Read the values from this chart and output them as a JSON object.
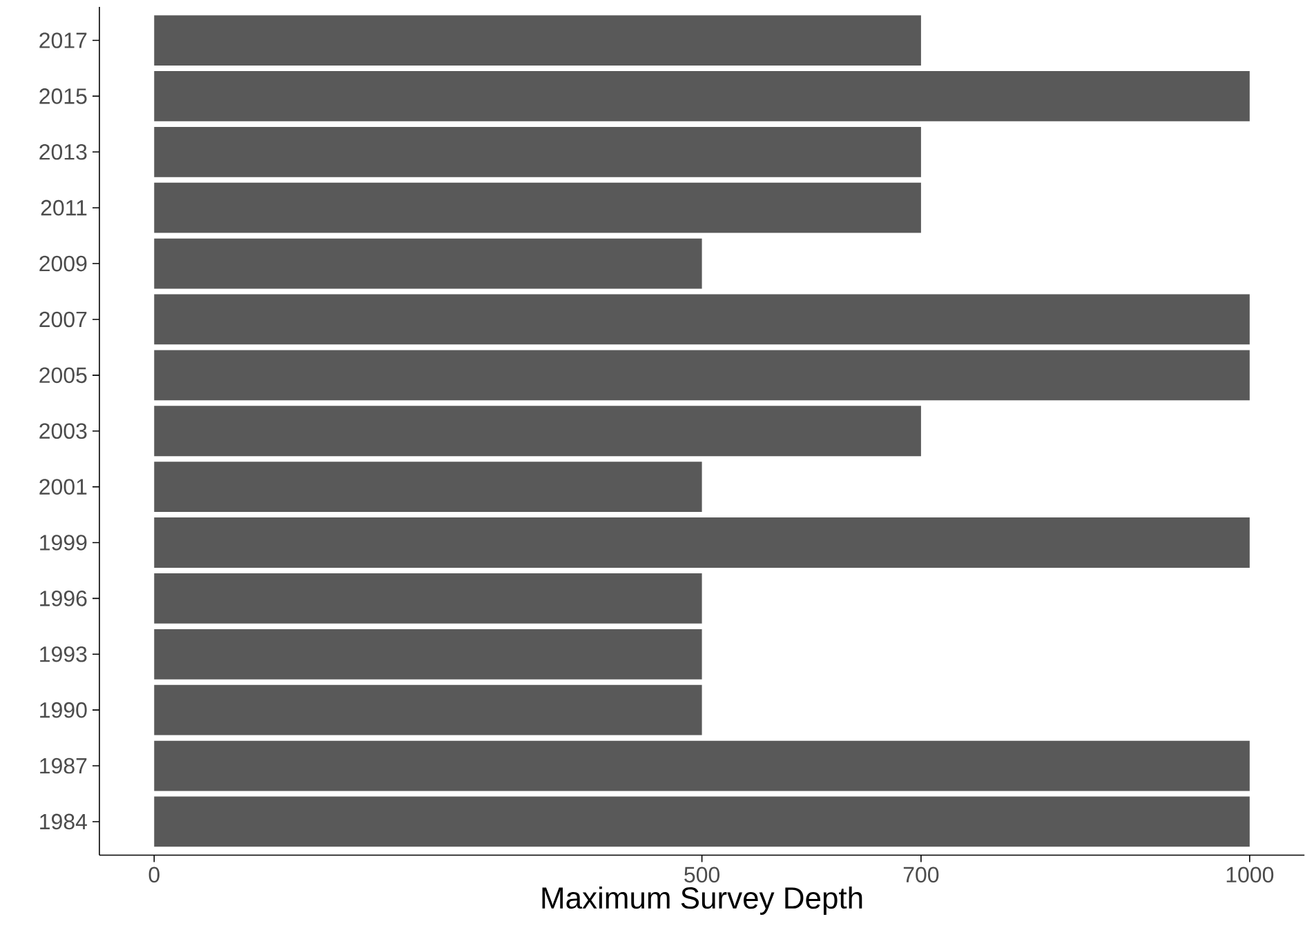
{
  "chart_data": {
    "type": "bar",
    "orientation": "horizontal",
    "xlabel": "Maximum Survey Depth",
    "categories": [
      "2017",
      "2015",
      "2013",
      "2011",
      "2009",
      "2007",
      "2005",
      "2003",
      "2001",
      "1999",
      "1996",
      "1993",
      "1990",
      "1987",
      "1984"
    ],
    "values": [
      700,
      1000,
      700,
      700,
      500,
      1000,
      1000,
      700,
      500,
      1000,
      500,
      500,
      500,
      1000,
      1000
    ],
    "color": "#595959",
    "xlim": [
      -50,
      1050
    ],
    "xticks": [
      0,
      500,
      700,
      1000
    ]
  }
}
